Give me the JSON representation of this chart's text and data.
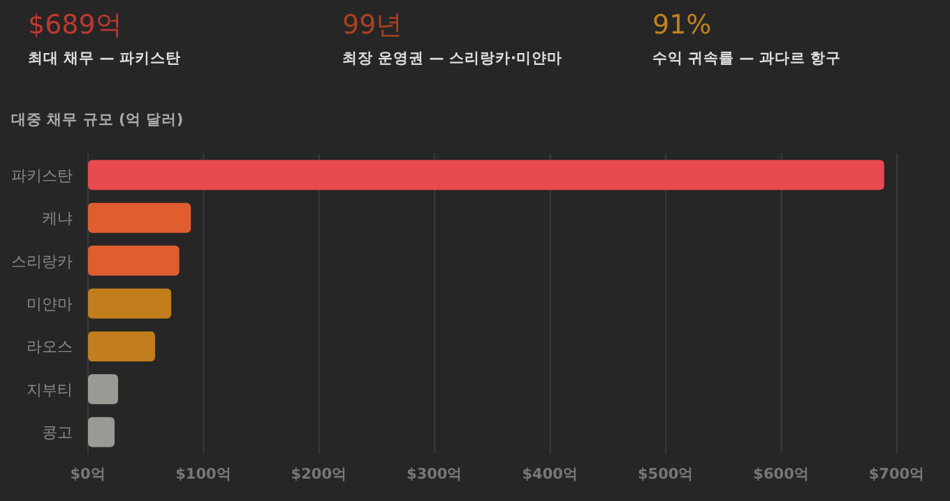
{
  "chart_data": [
    {
      "type": "other",
      "title": "$689억",
      "subtitle": "최대 채무 — 파키스탄",
      "color": "#c0392f"
    },
    {
      "type": "other",
      "title": "99년",
      "subtitle": "최장 운영권 — 스리랑카·미얀마",
      "color": "#a8431f"
    },
    {
      "type": "other",
      "title": "91%",
      "subtitle": "수익 귀속률 — 과다르 항구",
      "color": "#c4801e"
    },
    {
      "type": "bar",
      "orientation": "horizontal",
      "title": "대중 채무 규모 (억 달러)",
      "categories": [
        "파키스탄",
        "케냐",
        "스리랑카",
        "미얀마",
        "라오스",
        "지부티",
        "콩고"
      ],
      "values": [
        689,
        89,
        79,
        72,
        58,
        26,
        23
      ],
      "colors": [
        "#e84a4f",
        "#e05d30",
        "#e05d30",
        "#c27d1c",
        "#c27d1c",
        "#9b9994",
        "#9b9994"
      ],
      "xlim": [
        0,
        700
      ],
      "xticks": [
        {
          "value": 0,
          "label": "$0억"
        },
        {
          "value": 100,
          "label": "$100억"
        },
        {
          "value": 200,
          "label": "$200억"
        },
        {
          "value": 300,
          "label": "$300억"
        },
        {
          "value": 400,
          "label": "$400억"
        },
        {
          "value": 500,
          "label": "$500억"
        },
        {
          "value": 600,
          "label": "$600억"
        },
        {
          "value": 700,
          "label": "$700억"
        }
      ],
      "grid": "x"
    }
  ]
}
